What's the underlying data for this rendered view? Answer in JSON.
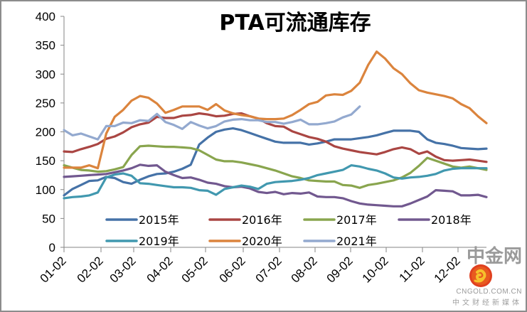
{
  "chart_data": {
    "type": "line",
    "title": "PTA可流通库存",
    "xlabel": "",
    "ylabel": "",
    "ylim": [
      0,
      400
    ],
    "yticks": [
      "0",
      "50",
      "100",
      "150",
      "200",
      "250",
      "300",
      "350",
      "400"
    ],
    "xticks": [
      "01-02",
      "02-02",
      "03-02",
      "04-02",
      "05-02",
      "06-02",
      "07-02",
      "08-02",
      "09-02",
      "10-02",
      "11-02",
      "12-02"
    ],
    "x_points_per_year": 51,
    "grid": false,
    "legend_position": "bottom-inside",
    "series": [
      {
        "name": "2015年",
        "color": "#4572a7",
        "values": [
          90,
          101,
          108,
          115,
          116,
          122,
          120,
          113,
          110,
          117,
          123,
          127,
          128,
          131,
          136,
          143,
          178,
          190,
          200,
          204,
          206,
          203,
          198,
          193,
          188,
          183,
          181,
          181,
          181,
          178,
          180,
          183,
          187,
          187,
          187,
          189,
          191,
          194,
          198,
          202,
          202,
          202,
          200,
          187,
          181,
          179,
          176,
          172,
          171,
          170,
          171
        ]
      },
      {
        "name": "2016年",
        "color": "#aa4643",
        "values": [
          166,
          165,
          170,
          174,
          179,
          188,
          192,
          199,
          208,
          213,
          216,
          226,
          224,
          224,
          228,
          229,
          232,
          230,
          227,
          228,
          231,
          232,
          227,
          223,
          215,
          210,
          209,
          201,
          196,
          191,
          188,
          183,
          175,
          171,
          168,
          165,
          163,
          161,
          165,
          170,
          173,
          170,
          162,
          166,
          157,
          151,
          150,
          151,
          152,
          150,
          148
        ]
      },
      {
        "name": "2017年",
        "color": "#89a54e",
        "values": [
          142,
          138,
          134,
          133,
          131,
          132,
          135,
          139,
          160,
          175,
          176,
          175,
          174,
          174,
          173,
          172,
          168,
          160,
          152,
          149,
          149,
          147,
          144,
          141,
          137,
          133,
          128,
          123,
          120,
          116,
          115,
          114,
          114,
          108,
          107,
          103,
          108,
          110,
          113,
          116,
          121,
          129,
          141,
          155,
          150,
          145,
          140,
          138,
          140,
          137,
          134
        ]
      },
      {
        "name": "2018年",
        "color": "#71588f",
        "values": [
          122,
          123,
          124,
          125,
          126,
          127,
          130,
          133,
          137,
          143,
          141,
          142,
          131,
          125,
          120,
          121,
          117,
          112,
          110,
          106,
          104,
          105,
          102,
          96,
          94,
          96,
          92,
          94,
          93,
          95,
          88,
          87,
          87,
          85,
          80,
          76,
          74,
          73,
          72,
          71,
          71,
          76,
          82,
          88,
          99,
          98,
          97,
          90,
          90,
          91,
          87
        ]
      },
      {
        "name": "2019年",
        "color": "#4198af",
        "values": [
          85,
          87,
          88,
          90,
          95,
          121,
          126,
          128,
          124,
          111,
          110,
          108,
          106,
          104,
          104,
          103,
          99,
          98,
          91,
          101,
          104,
          107,
          105,
          101,
          110,
          113,
          114,
          115,
          117,
          120,
          125,
          128,
          131,
          134,
          142,
          140,
          136,
          133,
          128,
          121,
          119,
          121,
          122,
          124,
          127,
          133,
          136,
          137,
          137,
          137,
          137
        ]
      },
      {
        "name": "2020年",
        "color": "#db843d",
        "values": [
          138,
          138,
          138,
          142,
          137,
          197,
          226,
          238,
          254,
          262,
          259,
          249,
          233,
          238,
          244,
          244,
          244,
          238,
          248,
          237,
          232,
          229,
          227,
          223,
          222,
          222,
          223,
          229,
          238,
          248,
          252,
          263,
          265,
          264,
          271,
          285,
          316,
          339,
          327,
          310,
          300,
          284,
          272,
          268,
          265,
          262,
          258,
          248,
          241,
          227,
          215
        ]
      },
      {
        "name": "2021年",
        "color": "#93a9cf",
        "values": [
          203,
          194,
          197,
          192,
          187,
          210,
          210,
          216,
          215,
          220,
          219,
          231,
          217,
          212,
          205,
          217,
          211,
          206,
          210,
          218,
          221,
          222,
          220,
          220,
          217,
          217,
          214,
          217,
          221,
          213,
          213,
          215,
          218,
          225,
          230,
          244
        ]
      }
    ]
  },
  "watermark": {
    "brand": "中金网",
    "domain": "CNGOLD.COM.CN",
    "slogan": "中文财经新媒体"
  }
}
